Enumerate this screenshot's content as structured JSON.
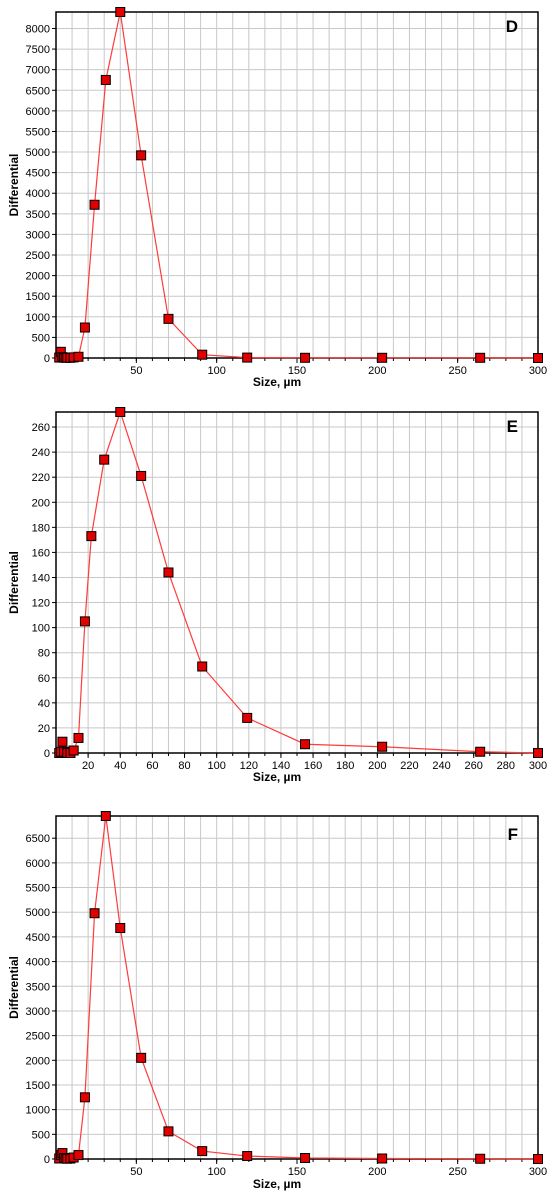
{
  "chart_data": [
    {
      "type": "line",
      "panel_label": "D",
      "xlabel": "Size,  µm",
      "ylabel": "Differential",
      "xlim": [
        0,
        300
      ],
      "ylim": [
        0,
        8400
      ],
      "x_major_ticks": [
        50,
        100,
        150,
        200,
        250,
        300
      ],
      "x_minor_step": 10,
      "y_ticks": [
        0,
        500,
        1000,
        1500,
        2000,
        2500,
        3000,
        3500,
        4000,
        4500,
        5000,
        5500,
        6000,
        6500,
        7000,
        7500,
        8000
      ],
      "series": [
        {
          "x": [
            2,
            3,
            4,
            5,
            6,
            7,
            9,
            11,
            14,
            18,
            24,
            31,
            40,
            53,
            70,
            91,
            119,
            155,
            203,
            264,
            300
          ],
          "y": [
            10,
            150,
            20,
            10,
            5,
            10,
            5,
            15,
            30,
            740,
            3720,
            6750,
            8400,
            4920,
            950,
            80,
            10,
            5,
            5,
            5,
            0
          ]
        }
      ]
    },
    {
      "type": "line",
      "panel_label": "E",
      "xlabel": "Size,  µm",
      "ylabel": "Differential",
      "xlim": [
        0,
        300
      ],
      "ylim": [
        0,
        272
      ],
      "x_major_ticks": [
        20,
        40,
        60,
        80,
        100,
        120,
        140,
        160,
        180,
        200,
        220,
        240,
        260,
        280,
        300
      ],
      "x_minor_step": 10,
      "y_ticks": [
        0,
        20,
        40,
        60,
        80,
        100,
        120,
        140,
        160,
        180,
        200,
        220,
        240,
        260
      ],
      "series": [
        {
          "x": [
            2,
            3,
            4,
            5,
            7,
            9,
            11,
            14,
            18,
            22,
            30,
            40,
            53,
            70,
            91,
            119,
            155,
            203,
            264,
            300
          ],
          "y": [
            0,
            1,
            9,
            1,
            0,
            0,
            2,
            12,
            105,
            173,
            234,
            272,
            221,
            144,
            69,
            28,
            7,
            5,
            1,
            0
          ]
        }
      ]
    },
    {
      "type": "line",
      "panel_label": "F",
      "xlabel": "Size,  µm",
      "ylabel": "Differential",
      "xlim": [
        0,
        300
      ],
      "ylim": [
        0,
        6950
      ],
      "x_major_ticks": [
        50,
        100,
        150,
        200,
        250,
        300
      ],
      "x_minor_step": 10,
      "y_ticks": [
        0,
        500,
        1000,
        1500,
        2000,
        2500,
        3000,
        3500,
        4000,
        4500,
        5000,
        5500,
        6000,
        6500
      ],
      "series": [
        {
          "x": [
            2,
            3,
            4,
            5,
            6,
            7,
            9,
            11,
            14,
            18,
            24,
            31,
            40,
            53,
            70,
            91,
            119,
            155,
            203,
            264,
            300
          ],
          "y": [
            10,
            80,
            120,
            20,
            10,
            5,
            10,
            30,
            80,
            1250,
            4980,
            6950,
            4680,
            2050,
            560,
            160,
            60,
            20,
            10,
            5,
            0
          ]
        }
      ]
    }
  ],
  "colors": {
    "line": "#ff3b3b",
    "marker_fill": "#e00000",
    "marker_stroke": "#000000",
    "grid": "#c8c8c8",
    "axis": "#000000",
    "text": "#000000"
  }
}
